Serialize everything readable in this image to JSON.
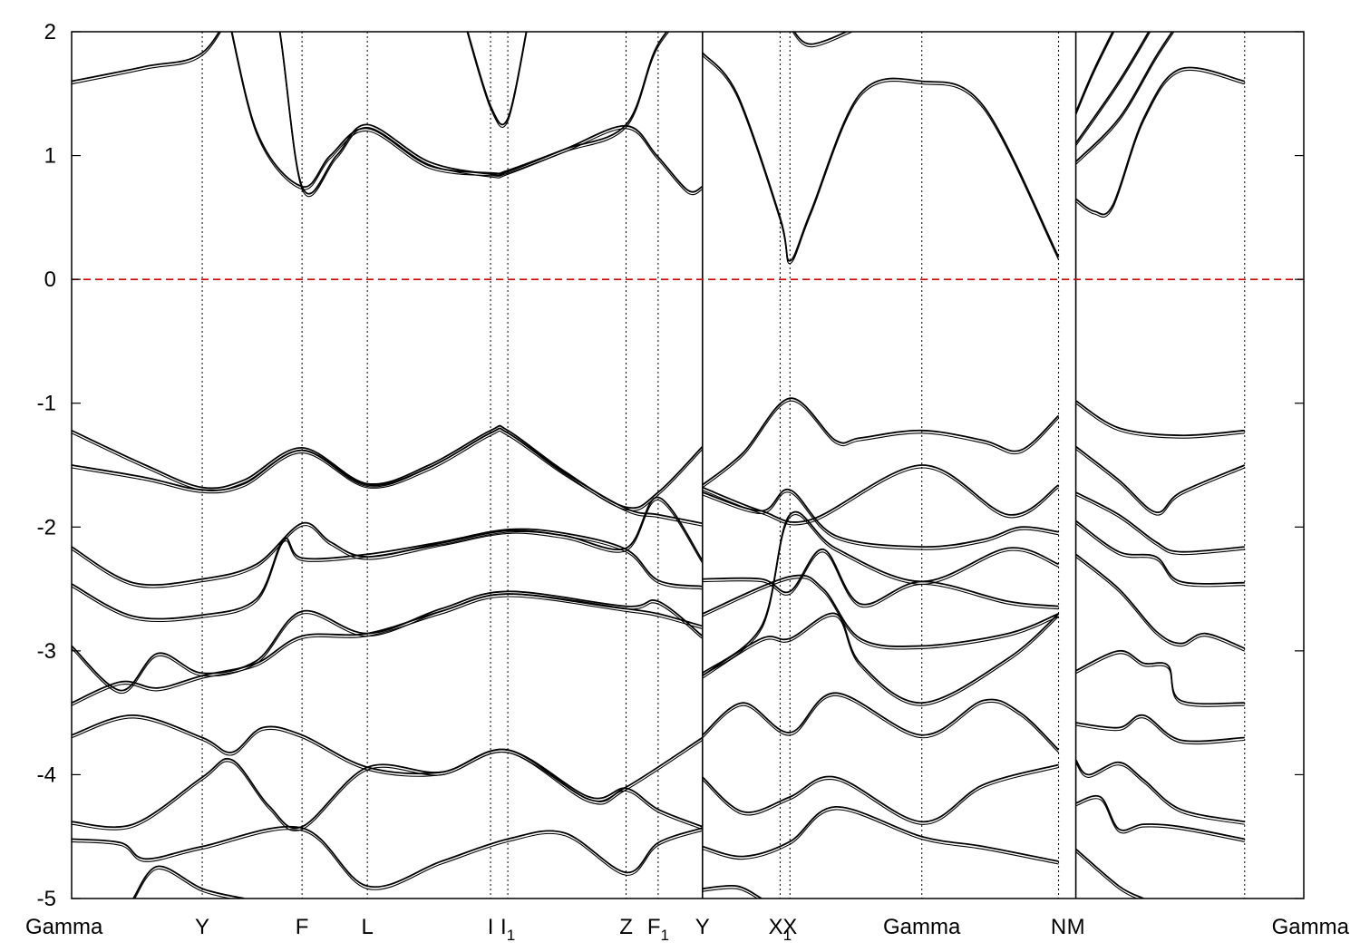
{
  "chart_data": {
    "type": "line",
    "title": "",
    "xlabel": "",
    "ylabel": "",
    "ylim": [
      -5,
      2
    ],
    "yticks": [
      -5,
      -4,
      -3,
      -2,
      -1,
      0,
      1,
      2
    ],
    "ytick_labels": [
      "-5",
      "-4",
      "-3",
      "-2",
      "-1",
      "0",
      "1",
      "2"
    ],
    "grid": "vertical dotted lines at high-symmetry points",
    "legend": "none",
    "reference_line": {
      "y": 0,
      "style": "dashed",
      "color": "#d40000"
    },
    "xlim": [
      0,
      1000
    ],
    "kpoint_x": [
      0,
      106,
      187,
      240,
      340,
      354,
      450,
      476,
      512,
      575,
      583,
      690,
      801,
      815,
      952
    ],
    "kpoint_labels": [
      {
        "main": "Gamma",
        "sub": "",
        "x": 0
      },
      {
        "main": "Y",
        "sub": "",
        "x": 106
      },
      {
        "main": "F",
        "sub": "",
        "x": 187
      },
      {
        "main": "L",
        "sub": "",
        "x": 240
      },
      {
        "main": "I",
        "sub": "",
        "x": 340
      },
      {
        "main": "I",
        "sub": "1",
        "x": 354
      },
      {
        "main": "Z",
        "sub": "",
        "x": 450
      },
      {
        "main": "F",
        "sub": "1",
        "x": 476
      },
      {
        "main": "Y",
        "sub": "",
        "x": 512
      },
      {
        "main": "X",
        "sub": "1",
        "x": 575
      },
      {
        "main": "X",
        "sub": "",
        "x": 583
      },
      {
        "main": "Gamma",
        "sub": "",
        "x": 690
      },
      {
        "main": "N",
        "sub": "",
        "x": 801
      },
      {
        "main": "M",
        "sub": "",
        "x": 815
      },
      {
        "main": "Gamma",
        "sub": "",
        "x": 952
      }
    ],
    "segment_breaks": [
      512,
      815
    ],
    "series": [
      {
        "x": [
          0,
          60,
          106,
          140,
          165,
          187,
          215,
          240,
          290,
          340,
          354,
          400,
          450,
          476,
          512
        ],
        "values": [
          1.6,
          1.72,
          1.83,
          2.3,
          2.2,
          0.75,
          1.0,
          1.25,
          0.95,
          0.85,
          0.87,
          1.05,
          1.25,
          1.9,
          2.3
        ]
      },
      {
        "x": [
          106,
          120,
          150,
          187,
          210,
          240,
          290,
          340,
          354,
          400,
          450,
          475,
          500,
          512
        ],
        "values": [
          2.3,
          2.4,
          1.2,
          0.75,
          1.0,
          1.22,
          0.92,
          0.86,
          0.88,
          1.05,
          1.24,
          1.0,
          0.72,
          0.75
        ]
      },
      {
        "x": [
          320,
          340,
          354,
          370
        ],
        "values": [
          2.05,
          1.4,
          1.3,
          2.05
        ]
      },
      {
        "x": [
          512,
          540,
          575,
          583,
          600,
          640,
          690,
          740,
          801
        ],
        "values": [
          1.83,
          1.5,
          0.5,
          0.15,
          0.55,
          1.5,
          1.6,
          1.4,
          0.18
        ]
      },
      {
        "x": [
          583,
          600,
          640
        ],
        "values": [
          2.05,
          1.9,
          2.05
        ]
      },
      {
        "x": [
          815,
          830,
          845,
          870,
          900,
          952
        ],
        "values": [
          0.65,
          0.55,
          0.6,
          1.3,
          1.7,
          1.6
        ]
      },
      {
        "x": [
          815,
          850,
          880,
          900
        ],
        "values": [
          0.95,
          1.3,
          1.8,
          2.1
        ]
      },
      {
        "x": [
          815,
          850,
          880
        ],
        "values": [
          1.1,
          1.6,
          2.1
        ]
      },
      {
        "x": [
          815,
          830,
          850
        ],
        "values": [
          1.35,
          1.7,
          2.1
        ]
      },
      {
        "x": [
          0,
          60,
          106,
          140,
          187,
          240,
          290,
          340,
          354,
          400,
          450,
          476,
          512
        ],
        "values": [
          -1.22,
          -1.5,
          -1.68,
          -1.62,
          -1.36,
          -1.65,
          -1.5,
          -1.22,
          -1.22,
          -1.55,
          -1.84,
          -1.72,
          -1.35
        ]
      },
      {
        "x": [
          0,
          60,
          106,
          140,
          187,
          240,
          290,
          340,
          354,
          400,
          450,
          476,
          512
        ],
        "values": [
          -1.5,
          -1.6,
          -1.7,
          -1.65,
          -1.38,
          -1.66,
          -1.52,
          -1.24,
          -1.24,
          -1.56,
          -1.85,
          -1.9,
          -1.97
        ]
      },
      {
        "x": [
          0,
          50,
          106,
          150,
          187,
          210,
          240,
          300,
          354,
          400,
          450,
          476,
          512
        ],
        "values": [
          -2.16,
          -2.45,
          -2.42,
          -2.3,
          -1.97,
          -2.12,
          -2.24,
          -2.13,
          -2.03,
          -2.07,
          -2.17,
          -1.76,
          -2.27
        ]
      },
      {
        "x": [
          0,
          50,
          106,
          150,
          172,
          187,
          240,
          300,
          354,
          400,
          450,
          476,
          512
        ],
        "values": [
          -2.46,
          -2.72,
          -2.71,
          -2.58,
          -2.1,
          -2.25,
          -2.22,
          -2.12,
          -2.02,
          -2.05,
          -2.18,
          -2.43,
          -2.48
        ]
      },
      {
        "x": [
          0,
          40,
          70,
          106,
          150,
          187,
          240,
          300,
          354,
          450,
          476,
          512
        ],
        "values": [
          -2.96,
          -3.32,
          -3.02,
          -3.18,
          -3.08,
          -2.68,
          -2.86,
          -2.66,
          -2.52,
          -2.64,
          -2.6,
          -2.88
        ]
      },
      {
        "x": [
          0,
          40,
          70,
          106,
          150,
          187,
          240,
          300,
          354,
          450,
          476,
          512
        ],
        "values": [
          -3.42,
          -3.25,
          -3.3,
          -3.2,
          -3.1,
          -2.88,
          -2.86,
          -2.68,
          -2.54,
          -2.66,
          -2.7,
          -2.8
        ]
      },
      {
        "x": [
          0,
          50,
          106,
          130,
          155,
          187,
          240,
          300,
          354,
          420,
          450,
          512
        ],
        "values": [
          -3.68,
          -3.52,
          -3.7,
          -3.82,
          -3.62,
          -3.68,
          -3.94,
          -3.98,
          -3.8,
          -4.2,
          -4.1,
          -3.7
        ]
      },
      {
        "x": [
          0,
          50,
          106,
          130,
          160,
          187,
          240,
          300,
          354,
          420,
          450,
          476,
          512
        ],
        "values": [
          -4.38,
          -4.4,
          -4.02,
          -3.88,
          -4.25,
          -4.42,
          -3.94,
          -3.98,
          -3.8,
          -4.18,
          -4.11,
          -4.28,
          -4.42
        ]
      },
      {
        "x": [
          0,
          40,
          60,
          106,
          187,
          240,
          300,
          354,
          400,
          450,
          476,
          512
        ],
        "values": [
          -4.52,
          -4.55,
          -4.68,
          -4.58,
          -4.43,
          -4.9,
          -4.7,
          -4.52,
          -4.47,
          -4.79,
          -4.55,
          -4.43
        ]
      },
      {
        "x": [
          50,
          70,
          106,
          140
        ],
        "values": [
          -5.0,
          -4.74,
          -4.92,
          -5.0
        ]
      },
      {
        "x": [
          512,
          545,
          583,
          620,
          640,
          690,
          740,
          770,
          801
        ],
        "values": [
          -1.66,
          -1.4,
          -0.96,
          -1.3,
          -1.28,
          -1.22,
          -1.3,
          -1.38,
          -1.1
        ]
      },
      {
        "x": [
          512,
          560,
          600,
          690,
          760,
          801
        ],
        "values": [
          -1.68,
          -1.87,
          -1.94,
          -1.5,
          -1.9,
          -1.66
        ]
      },
      {
        "x": [
          512,
          560,
          583,
          620,
          690,
          740,
          770,
          801
        ],
        "values": [
          -1.72,
          -1.87,
          -1.7,
          -2.07,
          -2.16,
          -2.1,
          -2.0,
          -2.04
        ]
      },
      {
        "x": [
          512,
          560,
          583,
          620,
          690,
          760,
          801
        ],
        "values": [
          -3.18,
          -2.8,
          -1.9,
          -2.17,
          -2.44,
          -2.17,
          -2.3
        ]
      },
      {
        "x": [
          512,
          560,
          583,
          610,
          640,
          690,
          760,
          801
        ],
        "values": [
          -2.42,
          -2.42,
          -2.52,
          -2.18,
          -2.62,
          -2.44,
          -2.6,
          -2.64
        ]
      },
      {
        "x": [
          512,
          583,
          610,
          640,
          690,
          760,
          801
        ],
        "values": [
          -2.7,
          -2.4,
          -2.5,
          -2.9,
          -2.96,
          -2.86,
          -2.7
        ]
      },
      {
        "x": [
          512,
          560,
          583,
          620,
          640,
          690,
          760,
          801
        ],
        "values": [
          -3.2,
          -2.9,
          -2.9,
          -2.7,
          -3.1,
          -3.42,
          -3.06,
          -2.7
        ]
      },
      {
        "x": [
          512,
          545,
          583,
          620,
          690,
          740,
          770,
          801
        ],
        "values": [
          -3.68,
          -3.42,
          -3.66,
          -3.34,
          -3.68,
          -3.4,
          -3.5,
          -3.8
        ]
      },
      {
        "x": [
          512,
          545,
          583,
          620,
          690,
          740,
          801
        ],
        "values": [
          -4.02,
          -4.3,
          -4.18,
          -4.02,
          -4.38,
          -4.08,
          -3.92
        ]
      },
      {
        "x": [
          512,
          545,
          583,
          620,
          690,
          740,
          801
        ],
        "values": [
          -4.58,
          -4.66,
          -4.54,
          -4.26,
          -4.5,
          -4.58,
          -4.7
        ]
      },
      {
        "x": [
          512,
          540,
          560
        ],
        "values": [
          -4.92,
          -4.9,
          -5.0
        ]
      },
      {
        "x": [
          815,
          850,
          900,
          952
        ],
        "values": [
          -0.98,
          -1.2,
          -1.26,
          -1.22
        ]
      },
      {
        "x": [
          815,
          850,
          880,
          900,
          952
        ],
        "values": [
          -1.35,
          -1.62,
          -1.88,
          -1.72,
          -1.5
        ]
      },
      {
        "x": [
          815,
          850,
          880,
          900,
          952
        ],
        "values": [
          -1.72,
          -1.9,
          -2.12,
          -2.2,
          -2.16
        ]
      },
      {
        "x": [
          815,
          850,
          880,
          900,
          952
        ],
        "values": [
          -1.95,
          -2.2,
          -2.24,
          -2.44,
          -2.45
        ]
      },
      {
        "x": [
          815,
          850,
          880,
          900,
          920,
          952
        ],
        "values": [
          -2.22,
          -2.5,
          -2.84,
          -2.94,
          -2.86,
          -2.98
        ]
      },
      {
        "x": [
          815,
          850,
          870,
          890,
          900,
          952
        ],
        "values": [
          -3.16,
          -3.0,
          -3.1,
          -3.12,
          -3.4,
          -3.42
        ]
      },
      {
        "x": [
          815,
          850,
          870,
          900,
          952
        ],
        "values": [
          -3.58,
          -3.62,
          -3.52,
          -3.72,
          -3.7
        ]
      },
      {
        "x": [
          815,
          825,
          850,
          870,
          900,
          952
        ],
        "values": [
          -3.88,
          -4.0,
          -3.9,
          -4.04,
          -4.28,
          -4.38
        ]
      },
      {
        "x": [
          815,
          835,
          850,
          870,
          900,
          952
        ],
        "values": [
          -4.23,
          -4.18,
          -4.44,
          -4.4,
          -4.42,
          -4.52
        ]
      },
      {
        "x": [
          815,
          850,
          870
        ],
        "values": [
          -4.6,
          -4.9,
          -5.0
        ]
      }
    ]
  }
}
